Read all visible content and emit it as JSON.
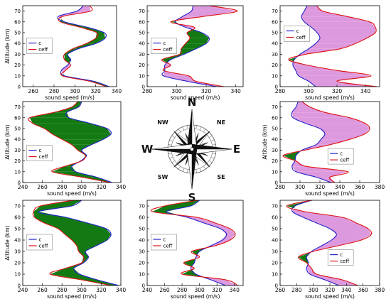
{
  "figure": {
    "colors": {
      "c": "#2222cc",
      "ceff": "#dd1111",
      "fill_ceff_greater": "#dd99dd",
      "fill_ceff_less": "#137a13",
      "axis": "#000000",
      "compass_dark": "#111111"
    },
    "compass": {
      "labels": [
        "N",
        "NE",
        "E",
        "SE",
        "S",
        "SW",
        "W",
        "NW"
      ]
    }
  },
  "chart_data": [
    {
      "panel": "NW",
      "type": "line",
      "xlabel": "sound speed (m/s)",
      "ylabel": "Altitude (km)",
      "xlim": [
        250,
        340
      ],
      "xticks": [
        260,
        280,
        300,
        320,
        340
      ],
      "ylim": [
        0,
        75
      ],
      "yticks": [
        0,
        10,
        20,
        30,
        40,
        50,
        60,
        70
      ],
      "legend": {
        "entries": [
          "c",
          "ceff"
        ],
        "placement": "middle-left"
      },
      "altitude": [
        0,
        5,
        10,
        15,
        20,
        25,
        30,
        35,
        40,
        45,
        50,
        55,
        60,
        65,
        70,
        75
      ],
      "series": [
        {
          "name": "c",
          "values": [
            333,
            318,
            290,
            287,
            293,
            296,
            293,
            303,
            320,
            329,
            328,
            312,
            290,
            284,
            302,
            308
          ]
        },
        {
          "name": "ceff",
          "values": [
            330,
            314,
            288,
            291,
            296,
            290,
            290,
            298,
            311,
            320,
            321,
            305,
            286,
            288,
            315,
            314
          ]
        }
      ]
    },
    {
      "panel": "N",
      "type": "line",
      "xlabel": "sound speed (m/s)",
      "ylabel": "",
      "xlim": [
        280,
        345
      ],
      "xticks": [
        280,
        300,
        320,
        340
      ],
      "ylim": [
        0,
        75
      ],
      "yticks": [
        0,
        10,
        20,
        30,
        40,
        50,
        60,
        70
      ],
      "legend": {
        "entries": [
          "c",
          "ceff"
        ],
        "placement": "middle-left"
      },
      "altitude": [
        0,
        5,
        10,
        15,
        20,
        25,
        30,
        35,
        40,
        45,
        50,
        55,
        60,
        65,
        70,
        75
      ],
      "series": [
        {
          "name": "c",
          "values": [
            327,
            307,
            291,
            292,
            292,
            296,
            305,
            313,
            320,
            322,
            317,
            306,
            299,
            304,
            310,
            311
          ]
        },
        {
          "name": "ceff",
          "values": [
            332,
            313,
            308,
            291,
            296,
            290,
            302,
            303,
            306,
            309,
            307,
            312,
            296,
            318,
            341,
            322
          ]
        }
      ]
    },
    {
      "panel": "NE",
      "type": "line",
      "xlabel": "sound speed (m/s)",
      "ylabel": "",
      "xlim": [
        280,
        350
      ],
      "xticks": [
        280,
        300,
        320,
        340
      ],
      "ylim": [
        0,
        75
      ],
      "yticks": [
        0,
        10,
        20,
        30,
        40,
        50,
        60,
        70
      ],
      "legend": {
        "entries": [
          "c",
          "ceff"
        ],
        "placement": "top-left"
      },
      "altitude": [
        0,
        5,
        10,
        15,
        20,
        25,
        30,
        35,
        40,
        45,
        50,
        55,
        60,
        65,
        70,
        75
      ],
      "series": [
        {
          "name": "c",
          "values": [
            305,
            300,
            293,
            291,
            289,
            290,
            294,
            300,
            305,
            308,
            306,
            302,
            297,
            295,
            297,
            299
          ]
        },
        {
          "name": "ceff",
          "values": [
            348,
            320,
            344,
            320,
            299,
            286,
            298,
            322,
            333,
            341,
            347,
            347,
            343,
            327,
            310,
            306
          ]
        }
      ]
    },
    {
      "panel": "W",
      "type": "line",
      "xlabel": "sound speed (m/s)",
      "ylabel": "Altitude (km)",
      "xlim": [
        240,
        340
      ],
      "xticks": [
        240,
        260,
        280,
        300,
        320,
        340
      ],
      "ylim": [
        0,
        75
      ],
      "yticks": [
        0,
        10,
        20,
        30,
        40,
        50,
        60,
        70
      ],
      "legend": {
        "entries": [
          "c",
          "ceff"
        ],
        "placement": "lower-middle-left"
      },
      "altitude": [
        0,
        5,
        10,
        15,
        20,
        25,
        30,
        35,
        40,
        45,
        50,
        55,
        60,
        65,
        70,
        75
      ],
      "series": [
        {
          "name": "c",
          "values": [
            331,
            315,
            294,
            290,
            299,
            305,
            300,
            310,
            322,
            330,
            326,
            308,
            287,
            285,
            297,
            300
          ]
        },
        {
          "name": "ceff",
          "values": [
            329,
            300,
            270,
            283,
            300,
            304,
            296,
            290,
            280,
            270,
            262,
            250,
            247,
            272,
            290,
            296
          ]
        }
      ]
    },
    {
      "panel": "E",
      "type": "line",
      "xlabel": "sound speed (m/s)",
      "ylabel": "Altitude (km)",
      "xlim": [
        280,
        380
      ],
      "xticks": [
        280,
        300,
        320,
        340,
        360,
        380
      ],
      "ylim": [
        0,
        75
      ],
      "yticks": [
        0,
        10,
        20,
        30,
        40,
        50,
        60,
        70
      ],
      "legend": {
        "entries": [
          "c",
          "ceff"
        ],
        "placement": "lower-right"
      },
      "altitude": [
        0,
        5,
        10,
        15,
        20,
        25,
        30,
        35,
        40,
        45,
        50,
        55,
        60,
        65,
        70,
        75
      ],
      "series": [
        {
          "name": "c",
          "values": [
            331,
            316,
            296,
            292,
            295,
            296,
            302,
            316,
            321,
            325,
            320,
            305,
            293,
            292,
            296,
            298
          ]
        },
        {
          "name": "ceff",
          "values": [
            335,
            330,
            348,
            306,
            296,
            283,
            305,
            330,
            350,
            365,
            370,
            365,
            350,
            325,
            310,
            302
          ]
        }
      ]
    },
    {
      "panel": "SW",
      "type": "line",
      "xlabel": "sound speed (m/s)",
      "ylabel": "Altitude (km)",
      "xlim": [
        240,
        340
      ],
      "xticks": [
        240,
        260,
        280,
        300,
        320,
        340
      ],
      "ylim": [
        0,
        75
      ],
      "yticks": [
        0,
        10,
        20,
        30,
        40,
        50,
        60,
        70
      ],
      "legend": {
        "entries": [
          "c",
          "ceff"
        ],
        "placement": "middle-left"
      },
      "altitude": [
        0,
        5,
        10,
        15,
        20,
        25,
        30,
        35,
        40,
        45,
        50,
        55,
        60,
        65,
        70,
        75
      ],
      "series": [
        {
          "name": "c",
          "values": [
            338,
            316,
            298,
            292,
            302,
            307,
            304,
            315,
            326,
            330,
            325,
            306,
            284,
            256,
            290,
            300
          ]
        },
        {
          "name": "ceff",
          "values": [
            330,
            300,
            268,
            283,
            300,
            302,
            297,
            295,
            290,
            283,
            276,
            262,
            252,
            251,
            258,
            292
          ]
        }
      ]
    },
    {
      "panel": "S",
      "type": "line",
      "xlabel": "sound speed (m/s)",
      "ylabel": "",
      "xlim": [
        240,
        350
      ],
      "xticks": [
        240,
        260,
        280,
        300,
        320,
        340
      ],
      "ylim": [
        0,
        75
      ],
      "yticks": [
        0,
        10,
        20,
        30,
        40,
        50,
        60,
        70
      ],
      "legend": {
        "entries": [
          "c",
          "ceff"
        ],
        "placement": "middle-left"
      },
      "altitude": [
        0,
        5,
        10,
        15,
        20,
        25,
        30,
        35,
        40,
        45,
        50,
        55,
        60,
        65,
        70,
        75
      ],
      "series": [
        {
          "name": "c",
          "values": [
            330,
            313,
            296,
            290,
            294,
            296,
            300,
            313,
            326,
            331,
            324,
            305,
            286,
            262,
            290,
            300
          ]
        },
        {
          "name": "ceff",
          "values": [
            344,
            330,
            280,
            294,
            282,
            300,
            291,
            318,
            335,
            341,
            335,
            318,
            297,
            246,
            260,
            298
          ]
        }
      ]
    },
    {
      "panel": "SE",
      "type": "line",
      "xlabel": "sound speed (m/s)",
      "ylabel": "",
      "xlim": [
        260,
        380
      ],
      "xticks": [
        260,
        280,
        300,
        320,
        340,
        360,
        380
      ],
      "ylim": [
        0,
        75
      ],
      "yticks": [
        0,
        10,
        20,
        30,
        40,
        50,
        60,
        70
      ],
      "legend": {
        "entries": [
          "c",
          "ceff"
        ],
        "placement": "lower-right"
      },
      "altitude": [
        0,
        5,
        10,
        15,
        20,
        25,
        30,
        35,
        40,
        45,
        50,
        55,
        60,
        65,
        70,
        75
      ],
      "series": [
        {
          "name": "c",
          "values": [
            331,
            314,
            296,
            292,
            294,
            292,
            298,
            310,
            322,
            328,
            320,
            304,
            288,
            275,
            278,
            298
          ]
        },
        {
          "name": "ceff",
          "values": [
            354,
            335,
            304,
            298,
            292,
            282,
            300,
            330,
            358,
            370,
            366,
            352,
            335,
            290,
            268,
            298
          ]
        }
      ]
    }
  ]
}
